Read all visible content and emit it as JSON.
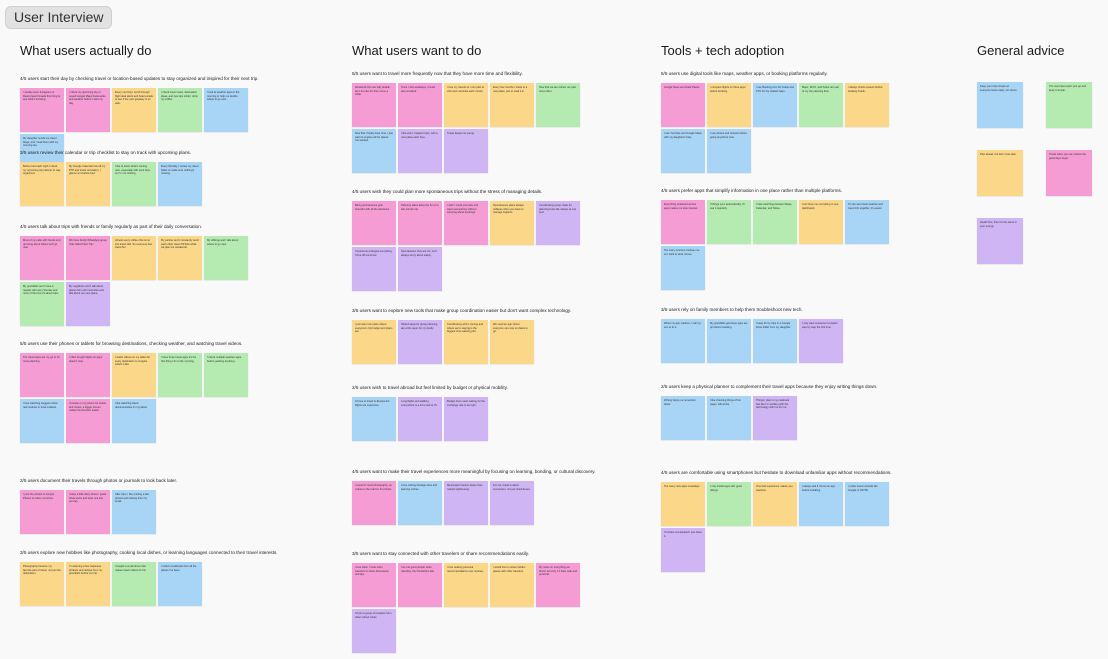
{
  "board_title": "User Interview",
  "columns": [
    {
      "title": "What users actually do",
      "groups": [
        {
          "label": "4/5 users start their day by checking travel or location-based updates to stay organized and inspired for their next trip.",
          "notes": [
            {
              "color": "pink",
              "text": "I usually open Instagram or Reels travel threads first thing to see what's trending."
            },
            {
              "color": "pink",
              "text": "I check my upcoming trip or saved Google Maps bookmarks and weather before I start my day."
            },
            {
              "color": "yellow",
              "text": "Every morning I scroll through flight deal alerts and hotel emails to see if the next getaway is on sale."
            },
            {
              "color": "green",
              "text": "I check travel news, destination ideas, and new tips while I drink my coffee."
            },
            {
              "color": "blue",
              "text": "I look at weather apps in the morning to help me decide where to go next."
            },
            {
              "color": "blue",
              "text": "My daughter sends me travel blogs, and I read them with my morning tea."
            }
          ]
        },
        {
          "label": "3/5 users review their calendar or trip checklist to stay on track with upcoming plans.",
          "notes": [
            {
              "color": "yellow",
              "text": "Before bed each night I check my upcoming trip planner to stay organized."
            },
            {
              "color": "yellow",
              "text": "My Google Calendar has all my PTP and travel reminders, I glance at it before bed."
            },
            {
              "color": "green",
              "text": "I like to know what's coming next, especially with work trips so I'm not rushing."
            },
            {
              "color": "blue",
              "text": "Every Monday I review my travel folder to make sure nothing's missing."
            }
          ]
        },
        {
          "label": "4/5 users talk about trips with friends or family regularly as part of their daily conversation.",
          "notes": [
            {
              "color": "pink",
              "text": "Most of my calls with friends end up being about where we'll go next."
            },
            {
              "color": "pink",
              "text": "We have family WhatsApp group chat called 'Next Trip'."
            },
            {
              "color": "yellow",
              "text": "Almost every coffee chat turns into travel talk. So everyone has travel fun."
            },
            {
              "color": "yellow",
              "text": "My partner and I constantly send each other travel TikToks while we plan our weekends."
            },
            {
              "color": "green",
              "text": "My siblings and I talk about where to go next."
            },
            {
              "color": "green",
              "text": "My grandkids and I have a regular call every Sunday and most of the time it's about trips."
            },
            {
              "color": "purple",
              "text": "My neighbors and I talk about places from old memories and talk about our next place."
            }
          ]
        },
        {
          "label": "5/5 users use their phones or tablets for browsing destinations, checking weather, and watching travel videos.",
          "notes": [
            {
              "color": "pink",
              "text": "The travel apps are my go to for route planning."
            },
            {
              "color": "pink",
              "text": "I often bought flights on apps doesn't stop."
            },
            {
              "color": "yellow",
              "text": "I watch videos on my tablet for every destination to imagine what's it like."
            },
            {
              "color": "green",
              "text": "I have three travel apps it's the first thing I do in the morning."
            },
            {
              "color": "green",
              "text": "I check multiple weather apps before packing anything."
            },
            {
              "color": "blue",
              "text": "I love watching vloggers show real routines in local markets."
            },
            {
              "color": "pink",
              "text": "I browse on my phone for hotels and routes, a bigger screen makes the decision easier."
            },
            {
              "color": "blue",
              "text": "I like watching travel documentaries on my tablet."
            }
          ]
        },
        {
          "label": "2/5 users document their travels through photos or journals to look back later.",
          "notes": [
            {
              "color": "pink",
              "text": "I post the photos to Google Photos to relive memories."
            },
            {
              "color": "pink",
              "text": "I keep a little diary where I paste ticket stubs and write one line per day."
            },
            {
              "color": "blue",
              "text": "After trips, I like printing a few photos and sharing them by email."
            }
          ]
        },
        {
          "label": "3/5 users explore new hobbies like photography, cooking local dishes, or learning languages connected to their travel interests.",
          "notes": [
            {
              "color": "yellow",
              "text": "Photography became my favorite part of travel, not just the destination."
            },
            {
              "color": "yellow",
              "text": "I'm learning a few Japanese phrases and recipes from my grandkids before our trip."
            },
            {
              "color": "green",
              "text": "I bought a small drone that makes travel videos for fun."
            },
            {
              "color": "blue",
              "text": "I collect cookbooks from all the places I've been."
            }
          ]
        }
      ]
    },
    {
      "title": "What users want to do",
      "groups": [
        {
          "label": "5/5 users want to travel more frequently now that they have more time and flexibility.",
          "notes": [
            {
              "color": "pink",
              "text": "Weekend trips are fully doable, but I do plan for them once a while."
            },
            {
              "color": "pink",
              "text": "Once I visit weekdays, it feels less crowded."
            },
            {
              "color": "yellow",
              "text": "I love my travels so I can plan to visit new countries each month."
            },
            {
              "color": "yellow",
              "text": "Every few months I travel to a new place, just to soak it in."
            },
            {
              "color": "green",
              "text": "Now that we are retired, we plan more often."
            },
            {
              "color": "blue",
              "text": "Now that I finally have time, I just want to explore all the places I've wanted."
            },
            {
              "color": "purple",
              "text": "I like short, frequent trips, with a new place each time."
            },
            {
              "color": "purple",
              "text": "Travel keeps me young."
            }
          ]
        },
        {
          "label": "4/5 users wish they could plan more spontaneous trips without the stress of managing details.",
          "notes": [
            {
              "color": "pink",
              "text": "Being spontaneous gets stressful with all the decisions."
            },
            {
              "color": "pink",
              "text": "Planning takes away the fun of a last-minute trip."
            },
            {
              "color": "pink",
              "text": "I wish I could just pack and travel somewhere without worrying about bookings."
            },
            {
              "color": "yellow",
              "text": "Spontaneous plans always collapse when you have to manage logistics."
            },
            {
              "color": "purple",
              "text": "Coordinating group chats for planning feels like always at one spot."
            },
            {
              "color": "purple",
              "text": "If someone arranged everything, I'd be off tomorrow."
            },
            {
              "color": "purple",
              "text": "Spontaneous trips are fun, but I always worry about safety."
            }
          ]
        },
        {
          "label": "3/5 users want to explore new tools that make group coordination easier but don't want complex technology.",
          "notes": [
            {
              "color": "yellow",
              "text": "I just want one place where everyone's trip budget and plans are."
            },
            {
              "color": "purple",
              "text": "Shared apps for group planning are a life saver for my family."
            },
            {
              "color": "yellow",
              "text": "Coordinating who's coming and where we're staying is the biggest time-wasting part."
            },
            {
              "color": "yellow",
              "text": "We need an app where everyone can vote on dates to go."
            }
          ]
        },
        {
          "label": "2/5 users wish to travel abroad but feel limited by budget or physical mobility.",
          "notes": [
            {
              "color": "blue",
              "text": "I'd love to travel to Europe but flights are expensive."
            },
            {
              "color": "purple",
              "text": "Long flights and walking everywhere is a lot to ask at 76."
            },
            {
              "color": "purple",
              "text": "Budget trips mean waiting for the exchange rate to be right."
            }
          ]
        },
        {
          "label": "4/5 users want to make their travel experiences more meaningful by focusing on learning, bonding, or cultural discovery.",
          "notes": [
            {
              "color": "pink",
              "text": "I travel for local photography, as culture is the real fun for photos."
            },
            {
              "color": "blue",
              "text": "I love visiting heritage sites and learning stories."
            },
            {
              "color": "purple",
              "text": "Meaningful travel is better than rushed sightseeing."
            },
            {
              "color": "purple",
              "text": "For me, travel is about connection, not just checkboxes."
            }
          ]
        },
        {
          "label": "3/5 users want to stay connected with other travelers or share recommendations easily.",
          "notes": [
            {
              "color": "pink",
              "text": "I love when I meet other travelers to share discoveries and tips."
            },
            {
              "color": "pink",
              "text": "I've met good people while traveling; the friendships last."
            },
            {
              "color": "yellow",
              "text": "I love reading personal recommendations over reviews."
            },
            {
              "color": "yellow",
              "text": "I would love to share hidden places with other travelers."
            },
            {
              "color": "pink",
              "text": "My notes on everything we found, but only if it feels safe and personal."
            },
            {
              "color": "purple",
              "text": "I'd join a group of travelers from other retired crews."
            }
          ]
        }
      ]
    },
    {
      "title": "Tools + tech adoption",
      "groups": [
        {
          "label": "5/5 users use digital tools like maps, weather apps, or booking platforms regularly.",
          "notes": [
            {
              "color": "pink",
              "text": "Google Maps and Hotel Planet."
            },
            {
              "color": "yellow",
              "text": "I compare flights on three apps before booking."
            },
            {
              "color": "blue",
              "text": "I use Booking.com for hotels and FTO for trip related stays."
            },
            {
              "color": "green",
              "text": "Maps, WCO, and Fodor are part of my trip planning flow."
            },
            {
              "color": "yellow",
              "text": "I always check reviews before booking hotels."
            },
            {
              "color": "blue",
              "text": "I use YouTube and Google Maps with my daughter's help."
            },
            {
              "color": "blue",
              "text": "I use photos and reviews before going anywhere new."
            }
          ]
        },
        {
          "label": "4/5 users prefer apps that simplify information in one place rather than multiple platforms.",
          "notes": [
            {
              "color": "pink",
              "text": "Everything scattered across apps makes me lose interest."
            },
            {
              "color": "green",
              "text": "If things sync automatically, I'll use it regularly."
            },
            {
              "color": "green",
              "text": "I hate switching between Maps, Calendar, and Notes."
            },
            {
              "color": "yellow",
              "text": "Just show me everything in one dashboard."
            },
            {
              "color": "blue",
              "text": "If I can see travel weather and travel info together, it's easier."
            },
            {
              "color": "blue",
              "text": "Too many sources confuse me, so I stick to what I know."
            }
          ]
        },
        {
          "label": "3/5 users rely on family members to help them troubleshoot new tech.",
          "notes": [
            {
              "color": "blue",
              "text": "When my app crashes, I call my son to fix it."
            },
            {
              "color": "blue",
              "text": "My grandkids get these apps set up before traveling."
            },
            {
              "color": "blue",
              "text": "I keep all my trips in a Google Drive folder from my daughter."
            },
            {
              "color": "purple",
              "text": "I only want someone to explain step by step the first time."
            }
          ]
        },
        {
          "label": "2/5 users keep a physical planner to complement their travel apps because they enjoy writing things down.",
          "notes": [
            {
              "color": "blue",
              "text": "Writing helps me remember faster."
            },
            {
              "color": "blue",
              "text": "I like checking things off on paper, still works."
            },
            {
              "color": "purple",
              "text": "Things I plan in my notebook feel like I'm working with the technology with me for me."
            }
          ]
        },
        {
          "label": "4/5 users are comfortable using smartphones but hesitate to download unfamiliar apps without recommendations.",
          "notes": [
            {
              "color": "yellow",
              "text": "Too many new apps nowadays."
            },
            {
              "color": "green",
              "text": "I only install apps with good ratings."
            },
            {
              "color": "yellow",
              "text": "One bad experience makes you cautious."
            },
            {
              "color": "blue",
              "text": "I always ask if I know an app before installing."
            },
            {
              "color": "blue",
              "text": "I prefer known brands like Google or WOTE."
            },
            {
              "color": "purple",
              "text": "If it looks complicated I just close it."
            }
          ]
        }
      ]
    },
    {
      "title": "General advice",
      "notes": [
        {
          "color": "blue",
          "text": "Keep your trips simple so everyone feels ready, not stress."
        },
        {
          "color": "green",
          "text": "The real travel spirit: just go and keep it simple."
        },
        {
          "color": "yellow",
          "text": "Plan ahead, but don't over-plan."
        },
        {
          "color": "pink",
          "text": "Travel when you can, before the good days begin."
        },
        {
          "color": "purple",
          "text": "Health first, then it's the same in your energy."
        }
      ]
    }
  ]
}
